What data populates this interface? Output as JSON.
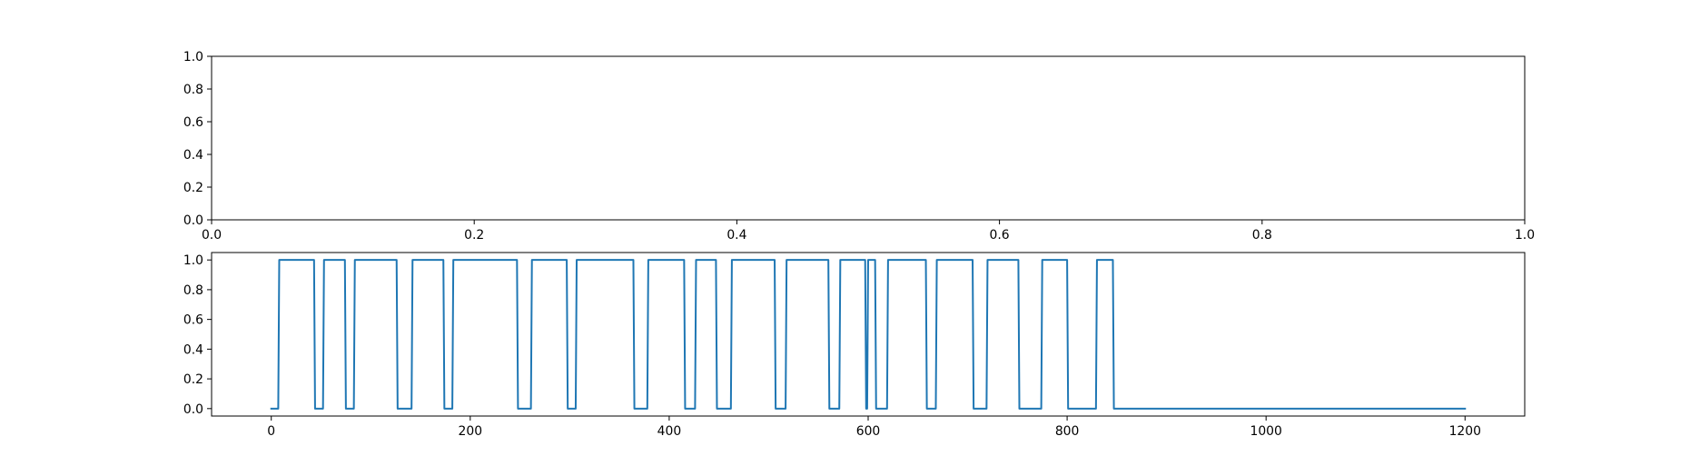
{
  "chart_data": [
    {
      "type": "line",
      "title": "",
      "xlabel": "",
      "ylabel": "",
      "xlim": [
        0,
        1
      ],
      "ylim": [
        0,
        1
      ],
      "xticks": [
        "0.0",
        "0.2",
        "0.4",
        "0.6",
        "0.8",
        "1.0"
      ],
      "yticks": [
        "0.0",
        "0.2",
        "0.4",
        "0.6",
        "0.8",
        "1.0"
      ],
      "series": [],
      "grid": false,
      "legend": "none"
    },
    {
      "type": "line",
      "title": "",
      "xlabel": "",
      "ylabel": "",
      "xlim": [
        -60,
        1260
      ],
      "ylim": [
        -0.05,
        1.05
      ],
      "xticks": [
        "0",
        "200",
        "400",
        "600",
        "800",
        "1000",
        "1200"
      ],
      "yticks": [
        "0.0",
        "0.2",
        "0.4",
        "0.6",
        "0.8",
        "1.0"
      ],
      "grid": false,
      "legend": "none",
      "color": "#1f77b4",
      "series": [
        {
          "x": [
            0,
            7,
            8,
            43,
            44,
            52,
            53,
            74,
            75,
            83,
            84,
            126,
            127,
            141,
            142,
            173,
            174,
            182,
            183,
            247,
            248,
            261,
            262,
            297,
            298,
            306,
            307,
            364,
            365,
            378,
            379,
            415,
            416,
            426,
            427,
            447,
            448,
            462,
            463,
            506,
            507,
            517,
            518,
            560,
            561,
            571,
            572,
            597,
            598,
            599,
            600,
            607,
            608,
            619,
            620,
            658,
            659,
            668,
            669,
            705,
            706,
            719,
            720,
            751,
            752,
            774,
            775,
            800,
            801,
            829,
            830,
            846,
            847,
            1200
          ],
          "y": [
            0,
            0,
            1,
            1,
            0,
            0,
            1,
            1,
            0,
            0,
            1,
            1,
            0,
            0,
            1,
            1,
            0,
            0,
            1,
            1,
            0,
            0,
            1,
            1,
            0,
            0,
            1,
            1,
            0,
            0,
            1,
            1,
            0,
            0,
            1,
            1,
            0,
            0,
            1,
            1,
            0,
            0,
            1,
            1,
            0,
            0,
            1,
            1,
            0,
            0,
            1,
            1,
            0,
            0,
            1,
            1,
            0,
            0,
            1,
            1,
            0,
            0,
            1,
            1,
            0,
            0,
            1,
            1,
            0,
            0,
            1,
            1,
            0,
            0
          ]
        }
      ]
    }
  ]
}
